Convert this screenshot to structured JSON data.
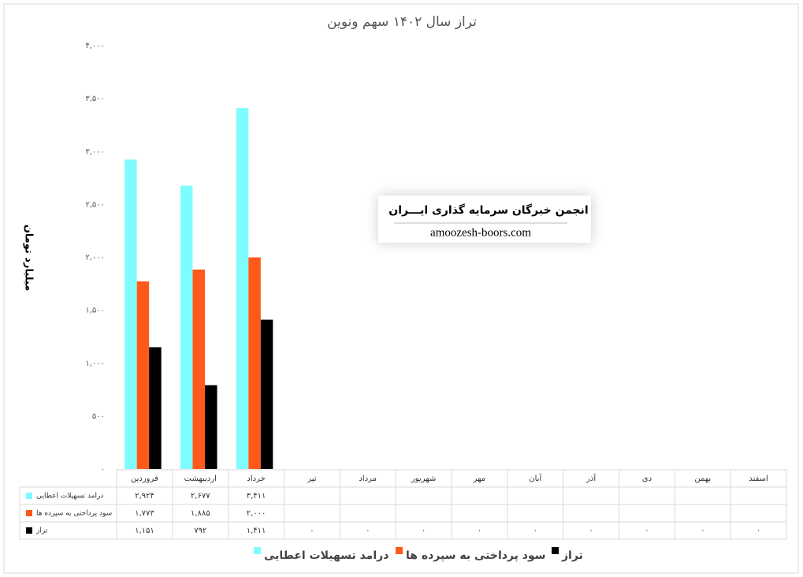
{
  "chart_data": {
    "type": "bar",
    "title": "تراز سال ۱۴۰۲ سهم ونوین",
    "y_label": "میلیارد تومان",
    "annotations": [
      "انجمن خبرگان سرمایه گذاری ایـــران",
      "amoozesh-boors.com"
    ],
    "categories": [
      "فروردین",
      "اردیبهشت",
      "خرداد",
      "تیر",
      "مرداد",
      "شهریور",
      "مهر",
      "آبان",
      "آذر",
      "دی",
      "بهمن",
      "اسفند"
    ],
    "series": [
      {
        "name": "درامد تسهیلات اعطایی",
        "color": "#7ffcff",
        "values": [
          2924,
          2677,
          3411,
          null,
          null,
          null,
          null,
          null,
          null,
          null,
          null,
          null
        ],
        "value_labels": [
          "۲,۹۲۴",
          "۲,۶۷۷",
          "۳,۴۱۱",
          null,
          null,
          null,
          null,
          null,
          null,
          null,
          null,
          null
        ]
      },
      {
        "name": "سود پرداختی به سپرده ها",
        "color": "#ff5a1a",
        "values": [
          1773,
          1885,
          2000,
          null,
          null,
          null,
          null,
          null,
          null,
          null,
          null,
          null
        ],
        "value_labels": [
          "۱,۷۷۳",
          "۱,۸۸۵",
          "۲,۰۰۰",
          null,
          null,
          null,
          null,
          null,
          null,
          null,
          null,
          null
        ]
      },
      {
        "name": "تراز",
        "color": "#000000",
        "values": [
          1151,
          792,
          1411,
          0,
          0,
          0,
          0,
          0,
          0,
          0,
          0,
          0
        ],
        "value_labels": [
          "۱,۱۵۱",
          "۷۹۲",
          "۱,۴۱۱",
          "۰",
          "۰",
          "۰",
          "۰",
          "۰",
          "۰",
          "۰",
          "۰",
          "۰"
        ]
      }
    ],
    "ylim": [
      0,
      4000
    ],
    "yticks": [
      {
        "value": 0,
        "label": "۰"
      },
      {
        "value": 500,
        "label": "۵۰۰"
      },
      {
        "value": 1000,
        "label": "۱,۰۰۰"
      },
      {
        "value": 1500,
        "label": "۱,۵۰۰"
      },
      {
        "value": 2000,
        "label": "۲,۰۰۰"
      },
      {
        "value": 2500,
        "label": "۲,۵۰۰"
      },
      {
        "value": 3000,
        "label": "۳,۰۰۰"
      },
      {
        "value": 3500,
        "label": "۳,۵۰۰"
      },
      {
        "value": 4000,
        "label": "۴,۰۰۰"
      }
    ],
    "grid": false,
    "legend": "bottom"
  }
}
